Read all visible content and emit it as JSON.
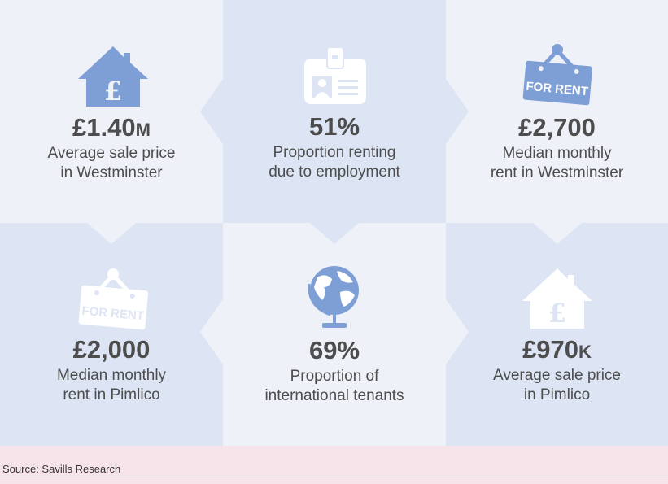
{
  "stats": [
    {
      "value": "£1.40",
      "suffix": "M",
      "line1": "Average sale price",
      "line2": "in Westminster",
      "icon": "house-pound-icon"
    },
    {
      "value": "51%",
      "suffix": "",
      "line1": "Proportion renting",
      "line2": "due to employment",
      "icon": "id-badge-icon"
    },
    {
      "value": "£2,700",
      "suffix": "",
      "line1": "Median monthly",
      "line2": "rent in Westminster",
      "icon": "for-rent-sign-icon"
    },
    {
      "value": "£2,000",
      "suffix": "",
      "line1": "Median monthly",
      "line2": "rent in Pimlico",
      "icon": "for-rent-sign-icon"
    },
    {
      "value": "69%",
      "suffix": "",
      "line1": "Proportion of",
      "line2": "international tenants",
      "icon": "globe-icon"
    },
    {
      "value": "£970",
      "suffix": "K",
      "line1": "Average sale price",
      "line2": "in Pimlico",
      "icon": "house-pound-icon"
    }
  ],
  "signs": {
    "text": "FOR RENT"
  },
  "icon_glyph": {
    "pound": "£"
  },
  "colors": {
    "light_cell": "#eef1f8",
    "dark_cell": "#dde5f4",
    "icon_blue": "#7e9fd6",
    "icon_faded": "#ffffff",
    "footer_bg": "#f7e4ea",
    "text": "#4d4d4d"
  },
  "footer": {
    "source": "Source: Savills Research"
  }
}
